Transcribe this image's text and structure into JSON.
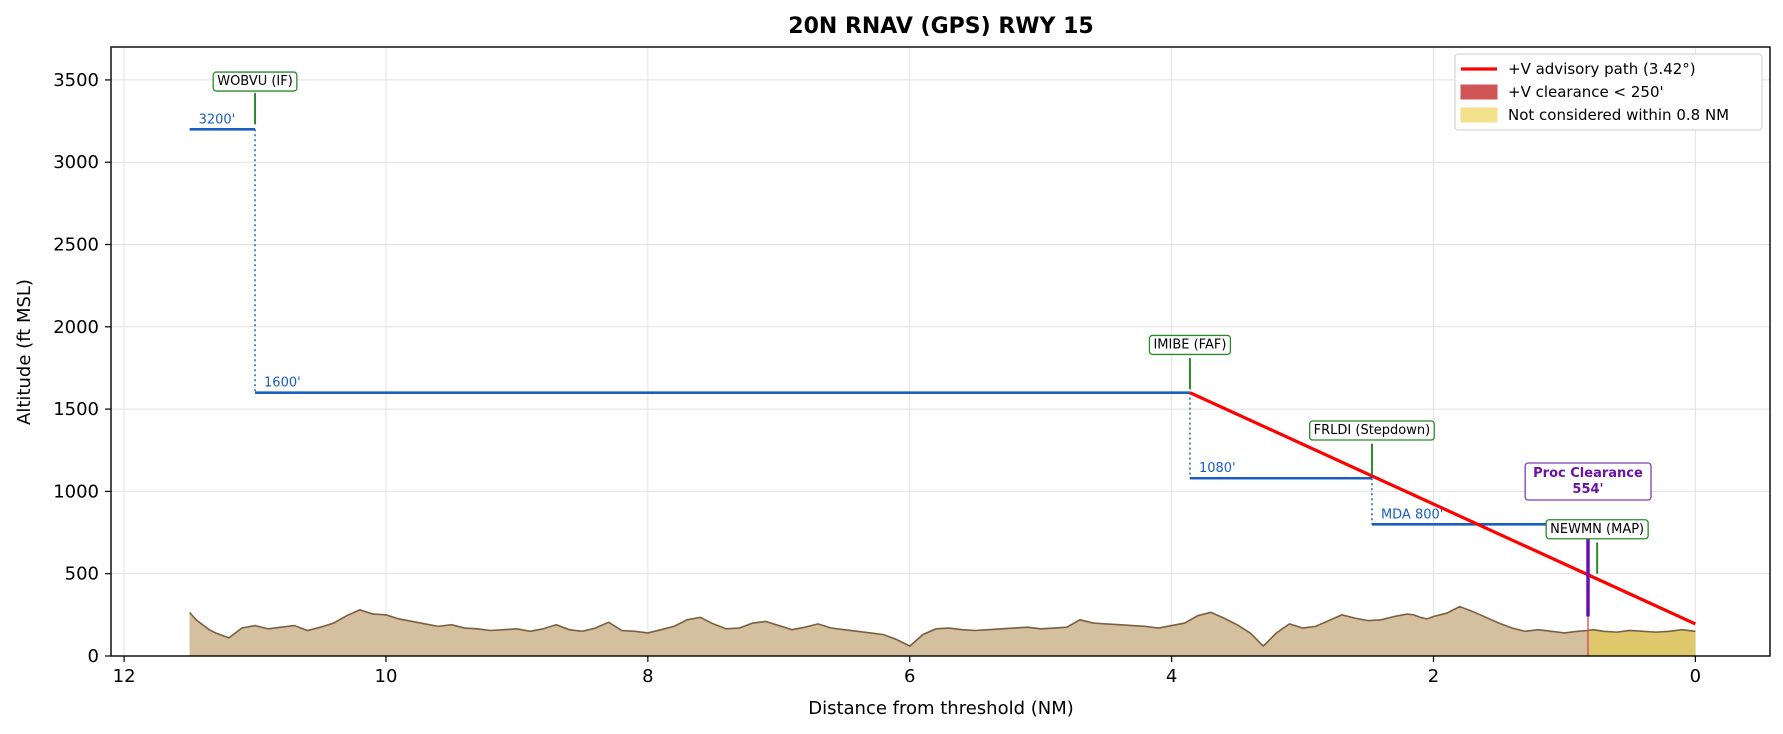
{
  "chart_data": {
    "type": "line",
    "title": "20N  RNAV (GPS) RWY 15",
    "xlabel": "Distance from threshold (NM)",
    "ylabel": "Altitude (ft MSL)",
    "xlim": [
      12.1,
      -0.57
    ],
    "ylim": [
      0,
      3700
    ],
    "x_ticks": [
      12,
      10,
      8,
      6,
      4,
      2,
      0
    ],
    "y_ticks": [
      0,
      500,
      1000,
      1500,
      2000,
      2500,
      3000,
      3500
    ],
    "grid": true,
    "legend_position": "top-right",
    "legend": [
      {
        "label": "+V advisory path (3.42°)",
        "kind": "line",
        "color": "#ff0000"
      },
      {
        "label": "+V clearance < 250'",
        "kind": "patch",
        "color": "#d05555"
      },
      {
        "label": "Not considered within 0.8 NM",
        "kind": "patch",
        "color": "#f2e08a"
      }
    ],
    "colors": {
      "step": "#1a5fc0",
      "vpath": "#ff0000",
      "terrain_fill": "#d4bf9e",
      "terrain_edge": "#7a6040",
      "not_considered": "#e0c86a",
      "fix": "#2a8a2a",
      "proc": "#6a12a8"
    },
    "step_segments": [
      {
        "x_start": 11.5,
        "x_end": 11.0,
        "alt": 3200,
        "label": "3200'"
      },
      {
        "x_start": 11.0,
        "x_end": 3.86,
        "alt": 1600,
        "label": "1600'"
      },
      {
        "x_start": 3.86,
        "x_end": 2.47,
        "alt": 1080,
        "label": "1080'"
      },
      {
        "x_start": 2.47,
        "x_end": 0.82,
        "alt": 800,
        "label": "MDA 800'"
      }
    ],
    "step_drops": [
      {
        "x": 11.0,
        "from": 3200,
        "to": 1600
      },
      {
        "x": 3.86,
        "from": 1600,
        "to": 1080
      },
      {
        "x": 2.47,
        "from": 1080,
        "to": 800
      }
    ],
    "vpath": {
      "x": [
        3.86,
        0.0
      ],
      "y": [
        1600,
        195
      ]
    },
    "fixes": [
      {
        "name": "WOBVU (IF)",
        "x": 11.0,
        "tick_from": 3230,
        "tick_to": 3420,
        "label_alt": 3490
      },
      {
        "name": "IMIBE (FAF)",
        "x": 3.86,
        "tick_from": 1620,
        "tick_to": 1810,
        "label_alt": 1890
      },
      {
        "name": "FRLDI (Stepdown)",
        "x": 2.47,
        "tick_from": 1100,
        "tick_to": 1290,
        "label_alt": 1370
      },
      {
        "name": "NEWMN (MAP)",
        "x": 0.75,
        "tick_from": 500,
        "tick_to": 690,
        "label_alt": 770
      }
    ],
    "proc_clearance": {
      "lines": [
        "Proc Clearance",
        "554'"
      ],
      "x": 0.82,
      "from_alt": 240,
      "to_alt": 800,
      "label_alt": 1060
    },
    "not_considered_x": 0.82,
    "terrain": {
      "x": [
        11.5,
        11.45,
        11.4,
        11.35,
        11.3,
        11.2,
        11.1,
        11.0,
        10.9,
        10.8,
        10.7,
        10.6,
        10.5,
        10.4,
        10.3,
        10.2,
        10.1,
        10.0,
        9.9,
        9.8,
        9.7,
        9.6,
        9.5,
        9.4,
        9.3,
        9.2,
        9.1,
        9.0,
        8.9,
        8.8,
        8.7,
        8.6,
        8.5,
        8.4,
        8.3,
        8.2,
        8.1,
        8.0,
        7.9,
        7.8,
        7.7,
        7.6,
        7.5,
        7.4,
        7.3,
        7.2,
        7.1,
        7.0,
        6.9,
        6.8,
        6.7,
        6.6,
        6.5,
        6.4,
        6.3,
        6.2,
        6.1,
        6.0,
        5.9,
        5.8,
        5.7,
        5.6,
        5.5,
        5.4,
        5.3,
        5.2,
        5.1,
        5.0,
        4.9,
        4.8,
        4.7,
        4.6,
        4.5,
        4.4,
        4.3,
        4.2,
        4.1,
        4.0,
        3.9,
        3.8,
        3.7,
        3.6,
        3.5,
        3.4,
        3.3,
        3.2,
        3.1,
        3.0,
        2.9,
        2.8,
        2.7,
        2.6,
        2.5,
        2.4,
        2.3,
        2.2,
        2.15,
        2.1,
        2.05,
        2.0,
        1.9,
        1.8,
        1.7,
        1.6,
        1.5,
        1.4,
        1.3,
        1.2,
        1.1,
        1.0,
        0.9,
        0.82,
        0.78,
        0.7,
        0.6,
        0.5,
        0.4,
        0.3,
        0.2,
        0.1,
        0.0
      ],
      "y": [
        265,
        220,
        190,
        160,
        140,
        110,
        170,
        185,
        165,
        175,
        185,
        155,
        175,
        200,
        245,
        280,
        255,
        250,
        225,
        210,
        195,
        180,
        190,
        170,
        165,
        155,
        160,
        165,
        150,
        165,
        190,
        160,
        150,
        170,
        205,
        155,
        150,
        140,
        160,
        180,
        220,
        235,
        195,
        165,
        170,
        200,
        210,
        185,
        160,
        175,
        195,
        170,
        160,
        150,
        140,
        130,
        100,
        60,
        130,
        165,
        170,
        160,
        155,
        160,
        165,
        170,
        175,
        165,
        170,
        175,
        220,
        200,
        195,
        190,
        185,
        180,
        170,
        185,
        200,
        245,
        265,
        230,
        190,
        140,
        60,
        140,
        195,
        170,
        180,
        215,
        250,
        230,
        215,
        220,
        240,
        255,
        250,
        235,
        225,
        240,
        260,
        300,
        270,
        235,
        200,
        170,
        150,
        160,
        150,
        140,
        150,
        155,
        160,
        150,
        145,
        155,
        150,
        145,
        150,
        160,
        150
      ]
    }
  }
}
